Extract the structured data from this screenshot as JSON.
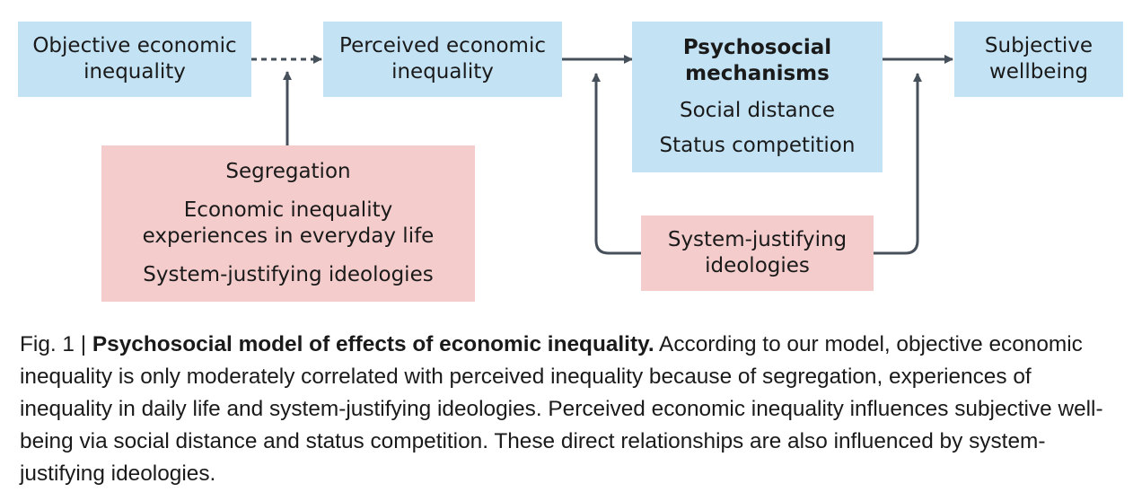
{
  "nodes": {
    "objective": {
      "line1": "Objective economic",
      "line2": "inequality"
    },
    "perceived": {
      "line1": "Perceived economic",
      "line2": "inequality"
    },
    "mechanisms": {
      "title1": "Psychosocial",
      "title2": "mechanisms",
      "item1": "Social distance",
      "item2": "Status competition"
    },
    "wellbeing": {
      "line1": "Subjective",
      "line2": "wellbeing"
    },
    "moderators": {
      "item1": "Segregation",
      "item2a": "Economic inequality",
      "item2b": "experiences in everyday life",
      "item3": "System-justifying ideologies"
    },
    "ideologies": {
      "line1": "System-justifying",
      "line2": "ideologies"
    }
  },
  "colors": {
    "blue_box": "#c3e3f5",
    "pink_box": "#f3cccb",
    "arrow": "#46505a"
  },
  "caption": {
    "figure_label": "Fig. 1 | ",
    "title": "Psychosocial model of effects of economic inequality.",
    "text": " According to our model, objective economic inequality is only moderately correlated with perceived inequality because of segregation, experiences of inequality in daily life and system-justifying ideologies. Perceived economic inequality influences subjective well-being via social distance and status competition. These direct relationships are also influenced by system-justifying ideologies."
  }
}
